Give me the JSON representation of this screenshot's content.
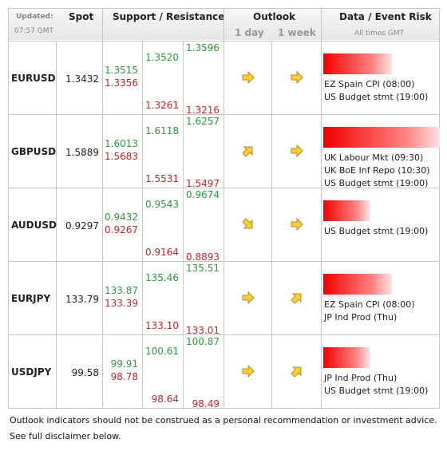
{
  "header": {
    "updated": "Updated:",
    "time": "07:57 GMT",
    "spot": "Spot",
    "levels": "Support / Resistance",
    "outlook": "Outlook",
    "day": "1 day",
    "week": "1 week",
    "risk": "Data / Event Risk",
    "times": "All times GMT"
  },
  "rows": [
    {
      "pair": "EURUSD",
      "spot": "1.3432",
      "levels": [
        [
          "1.3515",
          "1.3356"
        ],
        [
          "1.3520",
          "1.3261"
        ],
        [
          "1.3596",
          "1.3216"
        ]
      ],
      "events": [
        "EZ Spain CPI (08:00)",
        "US Budget stmt (19:00)"
      ]
    },
    {
      "pair": "GBPUSD",
      "spot": "1.5889",
      "levels": [
        [
          "1.6013",
          "1.5683"
        ],
        [
          "1.6118",
          "1.5531"
        ],
        [
          "1.6257",
          "1.5497"
        ]
      ],
      "events": [
        "UK Labour Mkt (09:30)",
        "UK BoE Inf Repo (10:30)",
        "US Budget stmt (19:00)"
      ]
    },
    {
      "pair": "AUDUSD",
      "spot": "0.9297",
      "levels": [
        [
          "0.9432",
          "0.9267"
        ],
        [
          "0.9543",
          "0.9164"
        ],
        [
          "0.9674",
          "0.8893"
        ]
      ],
      "events": [
        "US Budget stmt (19:00)"
      ]
    },
    {
      "pair": "EURJPY",
      "spot": "133.79",
      "levels": [
        [
          "133.87",
          "133.39"
        ],
        [
          "135.46",
          "133.10"
        ],
        [
          "135.51",
          "133.01"
        ]
      ],
      "events": [
        "EZ Spain CPI (08:00)",
        "JP Ind Prod (Thu)"
      ]
    },
    {
      "pair": "USDJPY",
      "spot": "99.58",
      "levels": [
        [
          "99.91",
          "98.78"
        ],
        [
          "100.61",
          "98.64"
        ],
        [
          "100.87",
          "98.49"
        ]
      ],
      "events": [
        "JP Ind Prod (Thu)",
        "US Budget stmt (19:00)"
      ]
    }
  ],
  "footer": [
    "Outlook indicators should not be construed as a personal recommendation or investment advice.",
    "See full disclaimer below."
  ]
}
